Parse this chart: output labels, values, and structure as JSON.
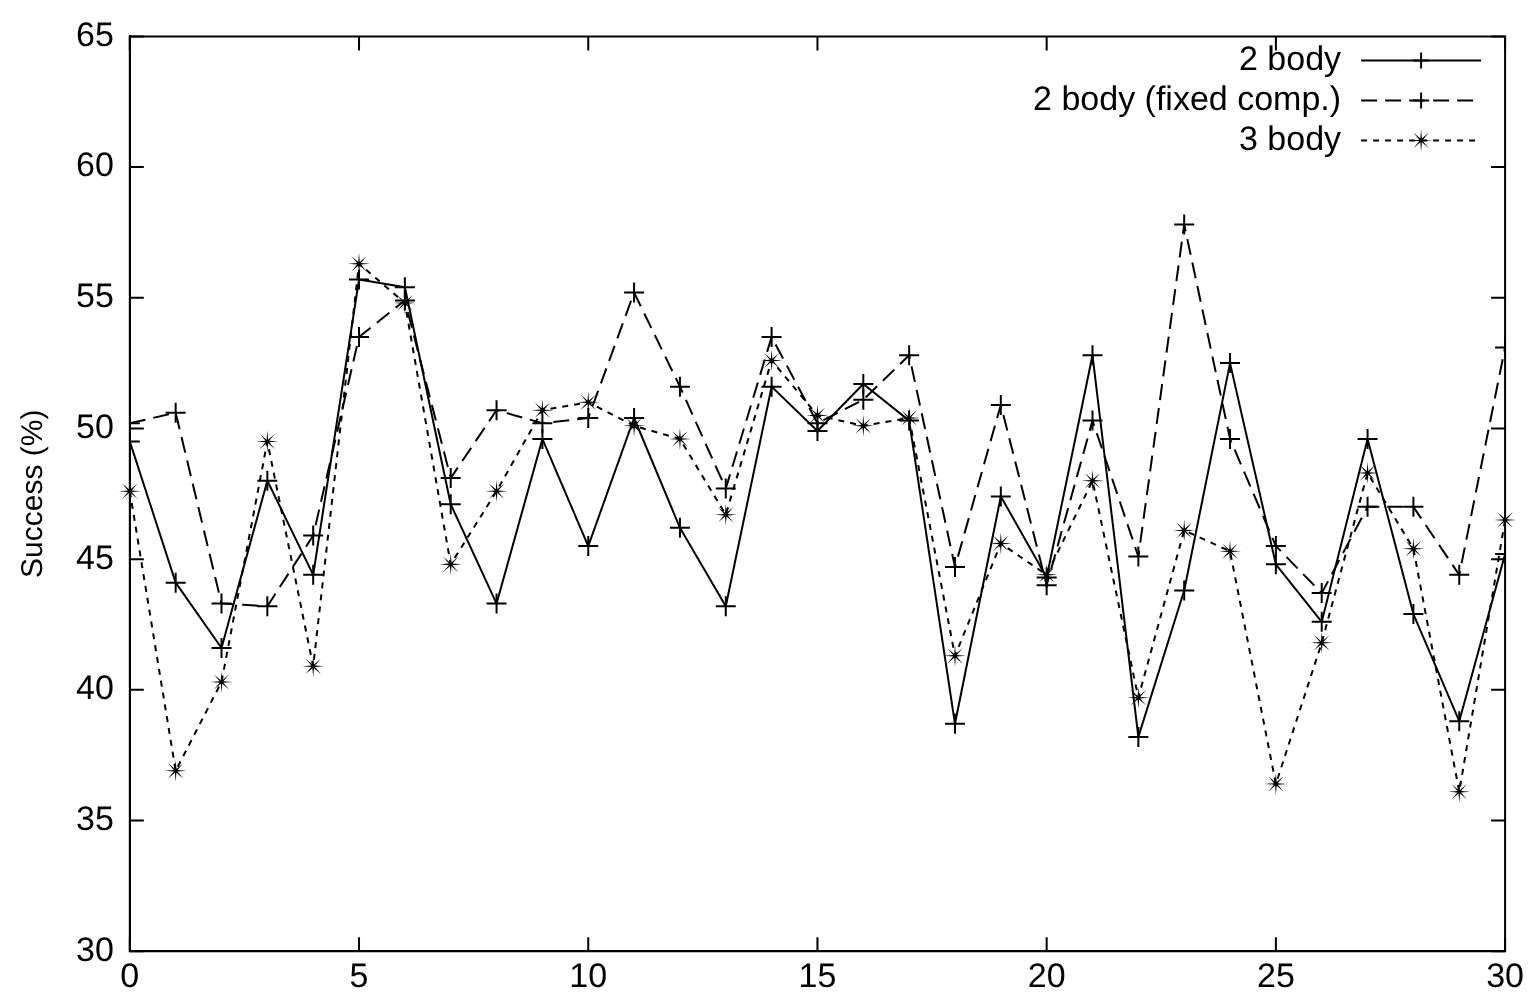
{
  "chart_data": {
    "type": "line",
    "ylabel": "Success (%)",
    "x": [
      0,
      1,
      2,
      3,
      4,
      5,
      6,
      7,
      8,
      9,
      10,
      11,
      12,
      13,
      14,
      15,
      16,
      17,
      18,
      19,
      20,
      21,
      22,
      23,
      24,
      25,
      26,
      27,
      28,
      29,
      30
    ],
    "xlim": [
      0,
      30
    ],
    "xticks": [
      0,
      5,
      10,
      15,
      20,
      25,
      30
    ],
    "ylim": [
      30,
      65
    ],
    "yticks": [
      30,
      35,
      40,
      45,
      50,
      55,
      60,
      65
    ],
    "grid": false,
    "legend": "top right",
    "series": [
      {
        "name": "2 body",
        "color": "#000000",
        "line_style": "solid",
        "marker": "cross",
        "values": [
          49.5,
          44.1,
          41.6,
          48.0,
          44.4,
          55.7,
          55.4,
          47.1,
          43.3,
          49.6,
          45.5,
          50.4,
          46.2,
          43.2,
          51.6,
          49.9,
          51.7,
          50.3,
          38.7,
          47.4,
          44.3,
          52.8,
          38.2,
          43.8,
          52.5,
          44.8,
          42.6,
          49.6,
          42.9,
          38.8,
          45.2
        ]
      },
      {
        "name": "2 body (fixed comp.)",
        "color": "#000000",
        "line_style": "dashed",
        "marker": "cross",
        "values": [
          50.2,
          50.6,
          43.3,
          43.2,
          45.9,
          53.5,
          54.9,
          48.1,
          50.7,
          50.2,
          50.4,
          55.2,
          51.6,
          47.7,
          53.5,
          50.2,
          51.1,
          52.8,
          44.7,
          50.9,
          44.0,
          50.3,
          45.1,
          57.8,
          49.6,
          45.5,
          43.7,
          47.0,
          47.0,
          44.4,
          53.1
        ]
      },
      {
        "name": "3 body",
        "color": "#000000",
        "line_style": "dotted",
        "marker": "star",
        "values": [
          47.6,
          36.9,
          40.3,
          49.5,
          40.9,
          56.3,
          54.8,
          44.8,
          47.6,
          50.7,
          51.0,
          50.1,
          49.6,
          46.7,
          52.6,
          50.5,
          50.1,
          50.4,
          41.3,
          45.6,
          44.4,
          48.0,
          39.7,
          46.1,
          45.3,
          36.4,
          41.8,
          48.3,
          45.4,
          36.1,
          46.5
        ]
      }
    ]
  }
}
